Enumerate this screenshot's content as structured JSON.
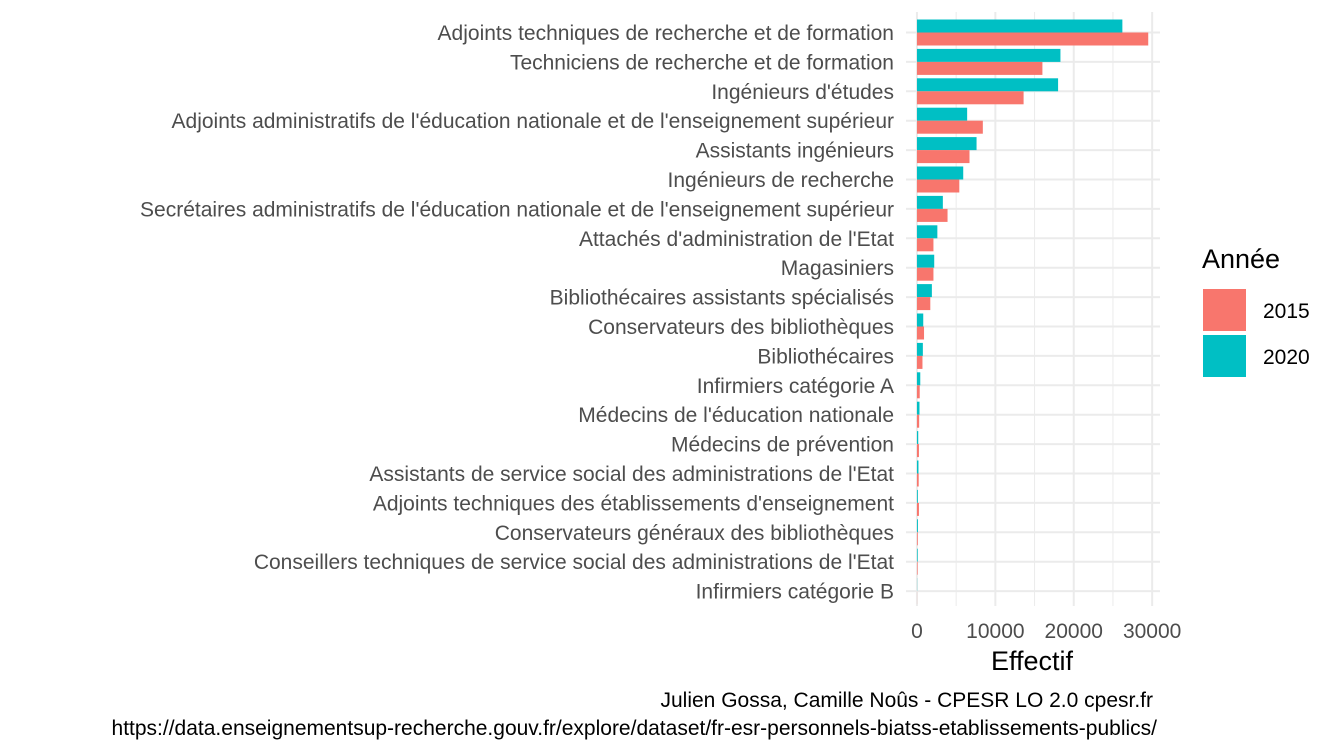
{
  "chart_data": {
    "type": "bar",
    "orientation": "horizontal",
    "categories": [
      "Adjoints techniques de recherche et de formation",
      "Techniciens de recherche et de formation",
      "Ingénieurs d'études",
      "Adjoints administratifs de l'éducation nationale et de l'enseignement supérieur",
      "Assistants ingénieurs",
      "Ingénieurs de recherche",
      "Secrétaires administratifs de l'éducation nationale et de l'enseignement supérieur",
      "Attachés d'administration de l'Etat",
      "Magasiniers",
      "Bibliothécaires assistants spécialisés",
      "Conservateurs des bibliothèques",
      "Bibliothécaires",
      "Infirmiers catégorie A",
      "Médecins de l'éducation nationale",
      "Médecins de prévention",
      "Assistants de service social des administrations de l'Etat",
      "Adjoints techniques des établissements d'enseignement",
      "Conservateurs généraux des bibliothèques",
      "Conseillers techniques de service social des administrations de l'Etat",
      "Infirmiers catégorie B"
    ],
    "series": [
      {
        "name": "2015",
        "color": "#F8766D",
        "values": [
          29500,
          16000,
          13600,
          8400,
          6700,
          5400,
          3900,
          2100,
          2100,
          1700,
          900,
          700,
          350,
          280,
          250,
          220,
          250,
          100,
          80,
          10
        ]
      },
      {
        "name": "2020",
        "color": "#00BFC4",
        "values": [
          26200,
          18300,
          18000,
          6400,
          7600,
          5900,
          3300,
          2600,
          2200,
          1900,
          800,
          750,
          420,
          320,
          160,
          190,
          110,
          120,
          90,
          20
        ]
      }
    ],
    "xlabel": "Effectif",
    "ylabel": "",
    "xlim": [
      -1400,
      31000
    ],
    "xticks": [
      0,
      10000,
      20000,
      30000
    ],
    "xtick_labels": [
      "0",
      "10000",
      "20000",
      "30000"
    ],
    "grid": true,
    "legend": {
      "title": "Année",
      "position": "right",
      "entries": [
        {
          "label": "2015",
          "color": "#F8766D"
        },
        {
          "label": "2020",
          "color": "#00BFC4"
        }
      ]
    },
    "caption": [
      "Julien Gossa, Camille Noûs - CPESR LO 2.0 cpesr.fr",
      "https://data.enseignementsup-recherche.gouv.fr/explore/dataset/fr-esr-personnels-biatss-etablissements-publics/"
    ]
  }
}
